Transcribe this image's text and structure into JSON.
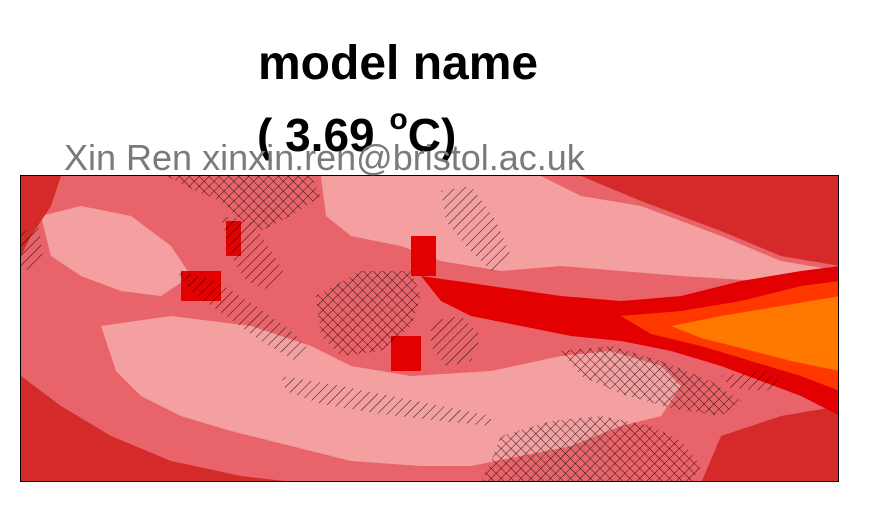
{
  "title": "model name",
  "subtitle": {
    "open": "( 3.69 ",
    "degree": "o",
    "unit": "C)"
  },
  "credit": "Xin Ren xinxin.ren@bristol.ac.uk",
  "colors": {
    "background": "#ffffff",
    "pale_red": "#f4a0a0",
    "light_red": "#e8646a",
    "red": "#d42a2a",
    "bright_red": "#e20000",
    "orange_red": "#ff3800",
    "orange": "#ff7800",
    "hatch": "#000000",
    "credit_text": "#7a7a7a"
  },
  "map": {
    "legend": "none",
    "hatching": "land masks shown with cross-hatching"
  }
}
